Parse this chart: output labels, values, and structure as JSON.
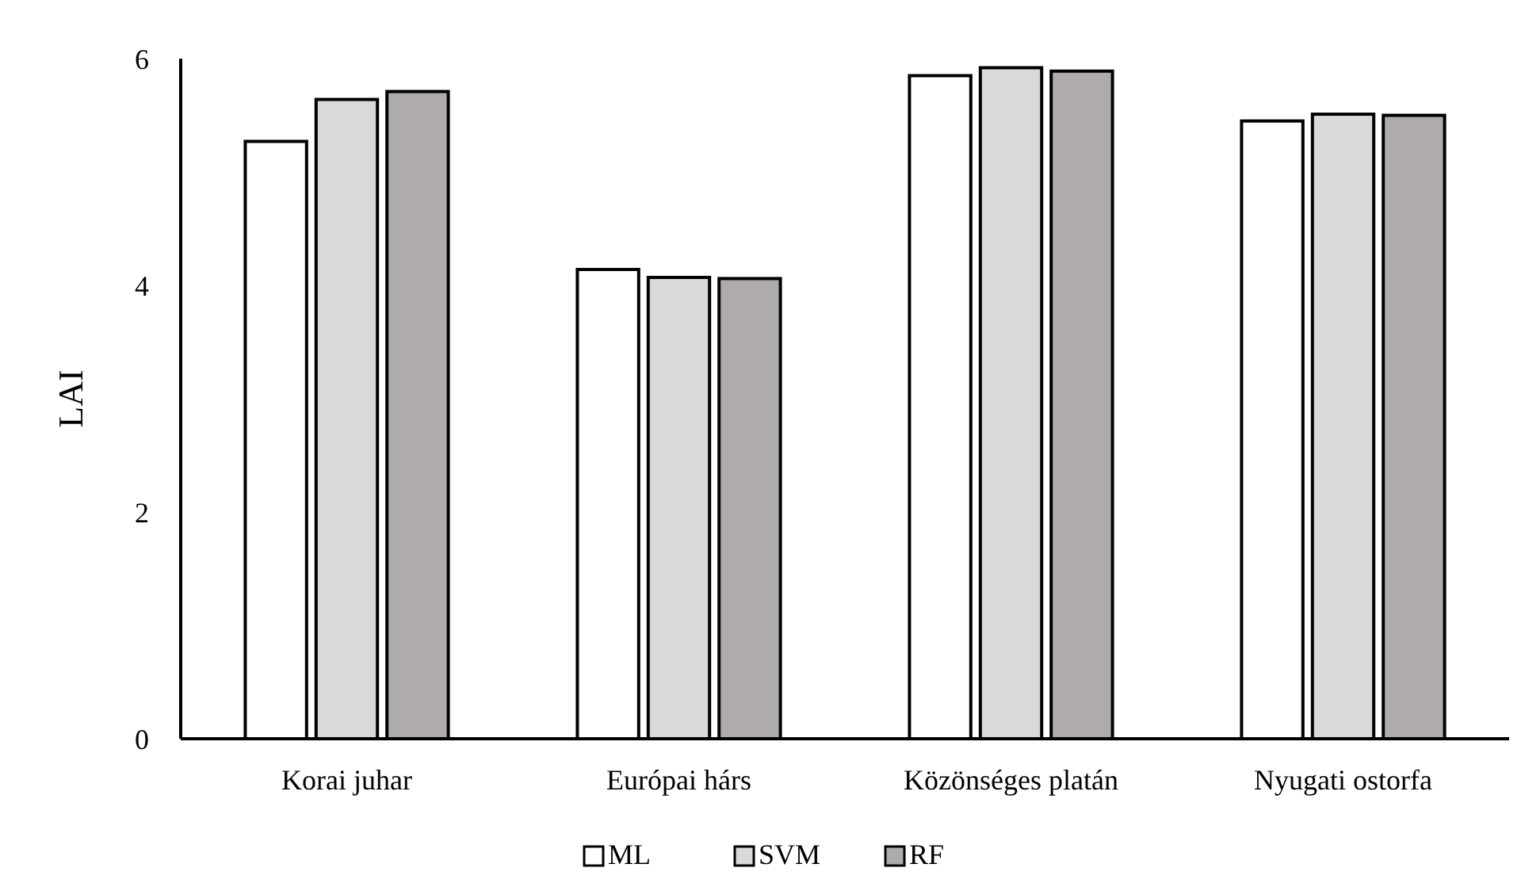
{
  "chart_data": {
    "type": "bar",
    "ylabel": "LAI",
    "categories": [
      "Korai juhar",
      "Európai hárs",
      "Közönséges platán",
      "Nyugati ostorfa"
    ],
    "series": [
      {
        "name": "ML",
        "color": "#ffffff",
        "values": [
          5.27,
          4.14,
          5.85,
          5.45
        ]
      },
      {
        "name": "SVM",
        "color": "#d9d9d9",
        "values": [
          5.64,
          4.07,
          5.92,
          5.51
        ]
      },
      {
        "name": "RF",
        "color": "#afabab",
        "values": [
          5.71,
          4.06,
          5.89,
          5.5
        ]
      }
    ],
    "ylim": [
      0,
      6
    ],
    "yticks": [
      0,
      2,
      4,
      6
    ],
    "legend": "bottom"
  }
}
